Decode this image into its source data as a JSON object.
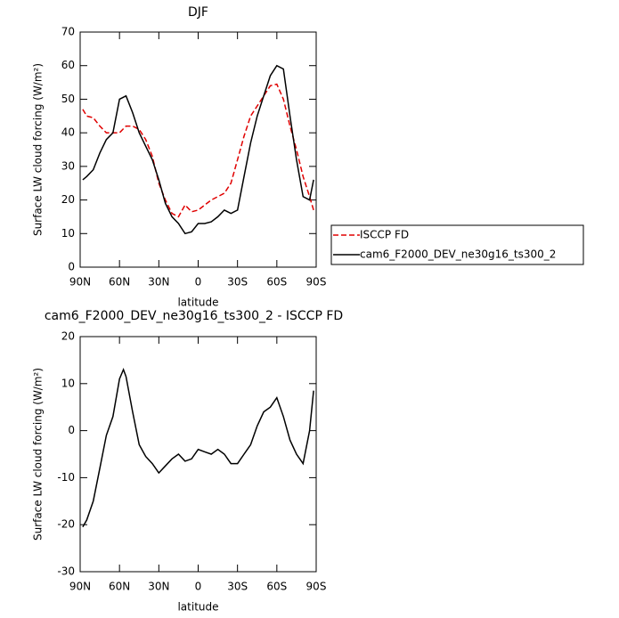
{
  "chart_data": [
    {
      "type": "line",
      "title": "DJF",
      "xlabel": "latitude",
      "ylabel": "Surface LW cloud forcing (W/m²)",
      "x": [
        88,
        85,
        80,
        75,
        70,
        65,
        60,
        55,
        50,
        45,
        40,
        35,
        30,
        25,
        20,
        15,
        10,
        5,
        0,
        -5,
        -10,
        -15,
        -20,
        -25,
        -30,
        -35,
        -40,
        -45,
        -50,
        -55,
        -60,
        -65,
        -70,
        -75,
        -80,
        -85,
        -88
      ],
      "series": [
        {
          "name": "ISCCP FD",
          "color": "#e00000",
          "dash": true,
          "values": [
            47,
            45,
            44.5,
            42,
            40,
            40,
            40,
            42,
            42,
            41,
            38,
            33,
            25,
            20,
            16,
            15,
            18.5,
            16.5,
            17,
            18.5,
            20,
            21,
            22,
            25,
            32,
            39,
            45,
            48,
            51,
            54,
            54.5,
            50,
            42,
            35,
            27,
            21,
            17
          ]
        },
        {
          "name": "cam6_F2000_DEV_ne30g16_ts300_2",
          "color": "#000000",
          "dash": false,
          "values": [
            26,
            27,
            29,
            34,
            38,
            40,
            50,
            51,
            46,
            40,
            36,
            32,
            26,
            19,
            15,
            13,
            10,
            10.5,
            13,
            13,
            13.5,
            15,
            17,
            16,
            17,
            27,
            37,
            45,
            51,
            57,
            60,
            59,
            45,
            32,
            21,
            20,
            26
          ]
        }
      ],
      "xlim": [
        90,
        -90
      ],
      "xticks": [
        {
          "value": 90,
          "label": "90N"
        },
        {
          "value": 60,
          "label": "60N"
        },
        {
          "value": 30,
          "label": "30N"
        },
        0,
        {
          "value": -30,
          "label": "30S"
        },
        {
          "value": -60,
          "label": "60S"
        },
        {
          "value": -90,
          "label": "90S"
        }
      ],
      "ylim": [
        0,
        70
      ],
      "yticks": [
        0,
        10,
        20,
        30,
        40,
        50,
        60,
        70
      ],
      "legend": "right"
    },
    {
      "type": "line",
      "title": "cam6_F2000_DEV_ne30g16_ts300_2 - ISCCP FD",
      "xlabel": "latitude",
      "ylabel": "Surface LW cloud forcing (W/m²)",
      "x": [
        88,
        85,
        80,
        75,
        70,
        65,
        60,
        57,
        55,
        50,
        45,
        40,
        35,
        30,
        25,
        20,
        15,
        10,
        5,
        0,
        -5,
        -10,
        -15,
        -20,
        -25,
        -30,
        -35,
        -40,
        -45,
        -50,
        -55,
        -60,
        -65,
        -70,
        -75,
        -80,
        -85,
        -88
      ],
      "values": [
        -20.5,
        -19,
        -15,
        -8,
        -1,
        3,
        11,
        13,
        11.5,
        4,
        -3,
        -5.5,
        -7,
        -9,
        -7.5,
        -6,
        -5,
        -6.5,
        -6,
        -4,
        -4.5,
        -5,
        -4,
        -5,
        -7,
        -7,
        -5,
        -3,
        1,
        4,
        5,
        7,
        3,
        -2,
        -5,
        -7,
        0,
        8.5
      ],
      "color": "#000000",
      "xlim": [
        90,
        -90
      ],
      "xticks": [
        {
          "value": 90,
          "label": "90N"
        },
        {
          "value": 60,
          "label": "60N"
        },
        {
          "value": 30,
          "label": "30N"
        },
        0,
        {
          "value": -30,
          "label": "30S"
        },
        {
          "value": -60,
          "label": "60S"
        },
        {
          "value": -90,
          "label": "90S"
        }
      ],
      "ylim": [
        -30,
        20
      ],
      "yticks": [
        -30,
        -20,
        -10,
        0,
        10,
        20
      ]
    }
  ]
}
